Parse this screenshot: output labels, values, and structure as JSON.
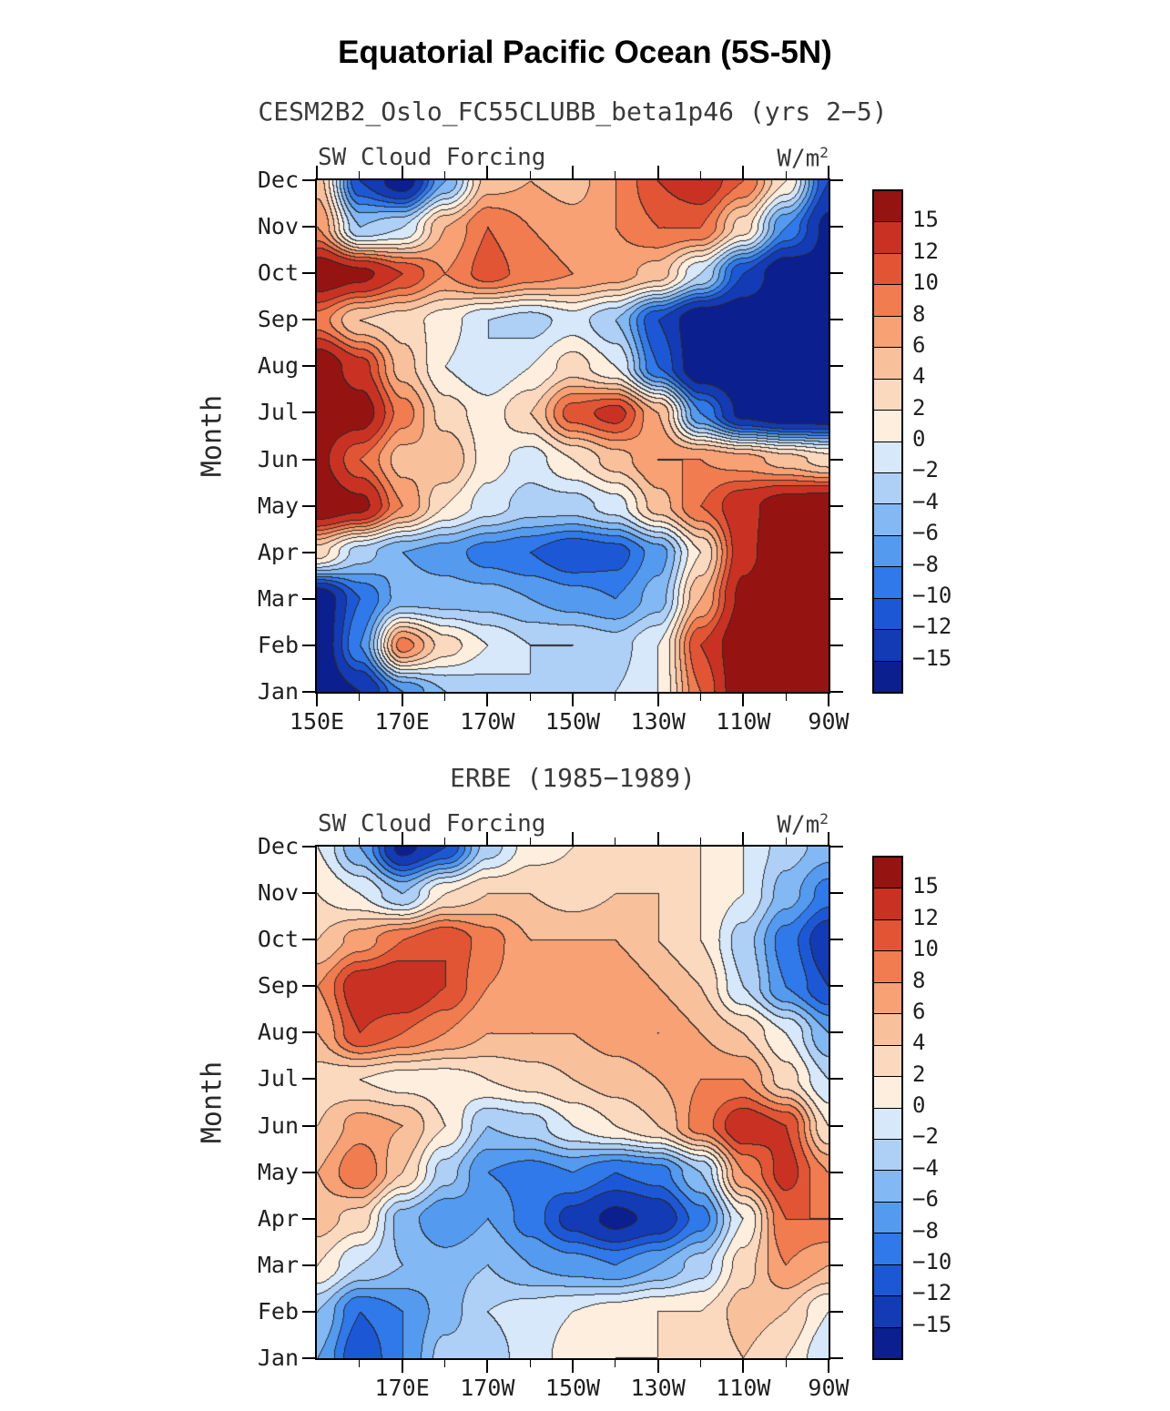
{
  "figure": {
    "main_title": "Equatorial Pacific Ocean (5S-5N)"
  },
  "chart_data": [
    {
      "type": "heatmap",
      "subtitle": "CESM2B2_Oslo_FC55CLUBB_beta1p46 (yrs 2−5)",
      "var_label": "SW Cloud Forcing",
      "units_base": "W/m",
      "units_exp": "2",
      "ylabel": "Month",
      "months": [
        "Jan",
        "Feb",
        "Mar",
        "Apr",
        "May",
        "Jun",
        "Jul",
        "Aug",
        "Sep",
        "Oct",
        "Nov",
        "Dec"
      ],
      "lon_range_deg_east": [
        150,
        270
      ],
      "grid_longitudes_deg_east": [
        150,
        160,
        170,
        180,
        190,
        200,
        210,
        220,
        230,
        240,
        250,
        260,
        270
      ],
      "x_ticks": [
        {
          "label": "150E",
          "lon": 150
        },
        {
          "label": "170E",
          "lon": 170
        },
        {
          "label": "170W",
          "lon": 190
        },
        {
          "label": "150W",
          "lon": 210
        },
        {
          "label": "130W",
          "lon": 230
        },
        {
          "label": "110W",
          "lon": 250
        },
        {
          "label": "90W",
          "lon": 270
        }
      ],
      "x_minor_step_deg": 10,
      "levels": [
        -15,
        -12,
        -10,
        -8,
        -6,
        -4,
        -2,
        0,
        2,
        4,
        6,
        8,
        10,
        12,
        15
      ],
      "colorbar_labels": [
        "15",
        "12",
        "10",
        "8",
        "6",
        "4",
        "2",
        "0",
        "−2",
        "−4",
        "−6",
        "−8",
        "−10",
        "−12",
        "−15"
      ],
      "palette": [
        "#0b1f8e",
        "#123bb5",
        "#1c58d6",
        "#2f79ea",
        "#549bf0",
        "#82b8f3",
        "#aed0f6",
        "#d6e8fa",
        "#fdeede",
        "#fbd9bf",
        "#f9c09c",
        "#f7a174",
        "#f17c50",
        "#e25534",
        "#c93222",
        "#951412"
      ],
      "value_layout": "rows = months Jan(bottom) to Dec(top); cols = longitude 150E to 90W every 10 deg; units W/m2 (estimated from contour fills)",
      "values": [
        [
          -18,
          -15,
          -8,
          -4,
          -3,
          -2,
          -3,
          -2,
          0,
          10,
          18,
          18,
          18
        ],
        [
          -18,
          -8,
          9,
          3,
          0,
          -2,
          -2,
          -3,
          0,
          12,
          18,
          18,
          18
        ],
        [
          -18,
          -10,
          -5,
          -5,
          -5,
          -6,
          -7,
          -8,
          -5,
          6,
          16,
          18,
          18
        ],
        [
          3,
          -3,
          -6,
          -7,
          -9,
          -10,
          -12,
          -11,
          -7,
          2,
          14,
          18,
          18
        ],
        [
          18,
          16,
          8,
          2,
          -1,
          -3,
          -3,
          -1,
          5,
          10,
          14,
          17,
          18
        ],
        [
          16,
          10,
          5,
          6,
          1,
          -1,
          2,
          5,
          8,
          8,
          7,
          5,
          3
        ],
        [
          18,
          17,
          9,
          3,
          1,
          4,
          11,
          13,
          6,
          -8,
          -16,
          -18,
          -18
        ],
        [
          18,
          13,
          5,
          0,
          -2,
          0,
          3,
          0,
          -10,
          -18,
          -18,
          -18,
          -18
        ],
        [
          9,
          4,
          3,
          1,
          -2,
          -3,
          -1,
          -4,
          -12,
          -18,
          -18,
          -18,
          -18
        ],
        [
          18,
          16,
          12,
          8,
          11,
          9,
          8,
          7,
          5,
          -2,
          -12,
          -18,
          -16
        ],
        [
          8,
          -4,
          -2,
          6,
          10,
          8,
          7,
          8,
          10,
          10,
          3,
          -8,
          -16
        ],
        [
          5,
          -12,
          -17,
          -6,
          5,
          6,
          5,
          8,
          12,
          14,
          10,
          2,
          -12
        ]
      ]
    },
    {
      "type": "heatmap",
      "subtitle": "ERBE (1985−1989)",
      "var_label": "SW Cloud Forcing",
      "units_base": "W/m",
      "units_exp": "2",
      "ylabel": "Month",
      "months": [
        "Jan",
        "Feb",
        "Mar",
        "Apr",
        "May",
        "Jun",
        "Jul",
        "Aug",
        "Sep",
        "Oct",
        "Nov",
        "Dec"
      ],
      "lon_range_deg_east": [
        150,
        270
      ],
      "grid_longitudes_deg_east": [
        150,
        160,
        170,
        180,
        190,
        200,
        210,
        220,
        230,
        240,
        250,
        260,
        270
      ],
      "x_ticks": [
        {
          "label": "170E",
          "lon": 170
        },
        {
          "label": "170W",
          "lon": 190
        },
        {
          "label": "150W",
          "lon": 210
        },
        {
          "label": "130W",
          "lon": 230
        },
        {
          "label": "110W",
          "lon": 250
        },
        {
          "label": "90W",
          "lon": 270
        }
      ],
      "x_minor_step_deg": 10,
      "levels": [
        -15,
        -12,
        -10,
        -8,
        -6,
        -4,
        -2,
        0,
        2,
        4,
        6,
        8,
        10,
        12,
        15
      ],
      "colorbar_labels": [
        "15",
        "12",
        "10",
        "8",
        "6",
        "4",
        "2",
        "0",
        "−2",
        "−4",
        "−6",
        "−8",
        "−10",
        "−12",
        "−15"
      ],
      "palette": [
        "#0b1f8e",
        "#123bb5",
        "#1c58d6",
        "#2f79ea",
        "#549bf0",
        "#82b8f3",
        "#aed0f6",
        "#d6e8fa",
        "#fdeede",
        "#fbd9bf",
        "#f9c09c",
        "#f7a174",
        "#f17c50",
        "#e25534",
        "#c93222",
        "#951412"
      ],
      "value_layout": "rows = months Jan(bottom) to Dec(top); cols = longitude 150E to 90W every 10 deg; units W/m2 (estimated from contour fills)",
      "values": [
        [
          -6,
          -12,
          -8,
          -3,
          -3,
          -1,
          1,
          2,
          2,
          2,
          4,
          2,
          -2
        ],
        [
          -4,
          -10,
          -8,
          -5,
          -2,
          -1,
          0,
          1,
          2,
          2,
          5,
          4,
          0
        ],
        [
          2,
          -2,
          -4,
          -5,
          -4,
          -6,
          -7,
          -8,
          -6,
          -3,
          3,
          8,
          6
        ],
        [
          5,
          3,
          -5,
          -8,
          -6,
          -9,
          -13,
          -16,
          -14,
          -9,
          0,
          10,
          10
        ],
        [
          6,
          10,
          4,
          -3,
          -8,
          -9,
          -8,
          -10,
          -9,
          -4,
          8,
          13,
          8
        ],
        [
          4,
          7,
          6,
          2,
          -4,
          -3,
          0,
          2,
          4,
          9,
          14,
          12,
          2
        ],
        [
          3,
          2,
          1,
          1,
          2,
          3,
          4,
          5,
          6,
          8,
          8,
          3,
          -2
        ],
        [
          6,
          12,
          10,
          8,
          6,
          6,
          6,
          7,
          8,
          6,
          4,
          0,
          -6
        ],
        [
          8,
          14,
          15,
          12,
          8,
          7,
          7,
          8,
          6,
          4,
          -2,
          -8,
          -12
        ],
        [
          4,
          7,
          10,
          12,
          9,
          6,
          6,
          6,
          4,
          2,
          -3,
          -9,
          -14
        ],
        [
          2,
          0,
          -4,
          2,
          4,
          4,
          3,
          4,
          4,
          2,
          0,
          -5,
          -9
        ],
        [
          0,
          -6,
          -16,
          -12,
          -3,
          1,
          2,
          2,
          2,
          2,
          0,
          -3,
          -5
        ]
      ]
    }
  ]
}
